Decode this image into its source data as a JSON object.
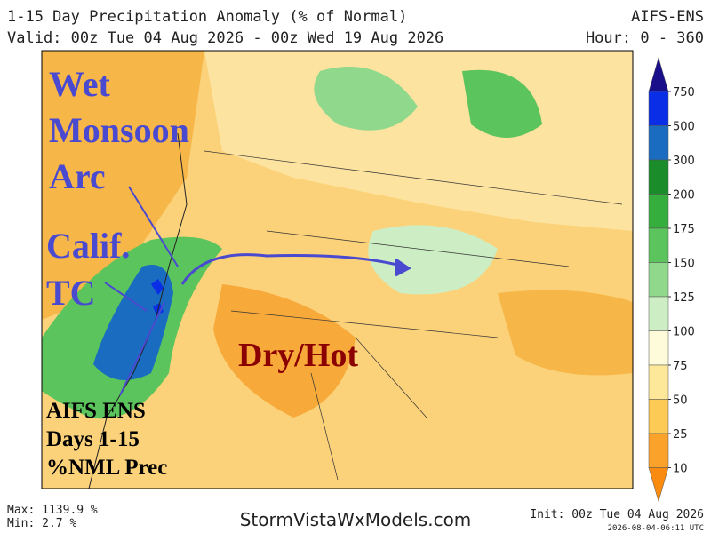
{
  "header": {
    "title": "1-15 Day Precipitation Anomaly (% of Normal)",
    "valid": "Valid: 00z Tue 04 Aug 2026 - 00z Wed 19 Aug 2026",
    "model": "AIFS-ENS",
    "hours": "Hour: 0 - 360"
  },
  "annotations": {
    "wet": [
      "Wet",
      "Monsoon",
      "Arc"
    ],
    "calif": [
      "Calif.",
      "TC"
    ],
    "dry": "Dry/Hot",
    "info": [
      "AIFS ENS",
      "Days 1-15",
      "%NML Prec"
    ]
  },
  "colorbar": {
    "levels": [
      750,
      500,
      300,
      200,
      175,
      150,
      125,
      100,
      75,
      50,
      25,
      10
    ],
    "colors": [
      "#1a0f8a",
      "#0a2ee6",
      "#1a6cc0",
      "#1a8c2a",
      "#36ae3e",
      "#5cc45c",
      "#8fd88c",
      "#cdeec4",
      "#fdfbd9",
      "#fde89a",
      "#fcca55",
      "#fba22a",
      "#f98c10"
    ]
  },
  "footer": {
    "max": "Max: 1139.9 %",
    "min": "Min: 2.7 %",
    "site": "StormVistaWxModels.com",
    "init": "Init: 00z Tue 04 Aug 2026",
    "stamp": "2026-08-04-06:11 UTC"
  }
}
